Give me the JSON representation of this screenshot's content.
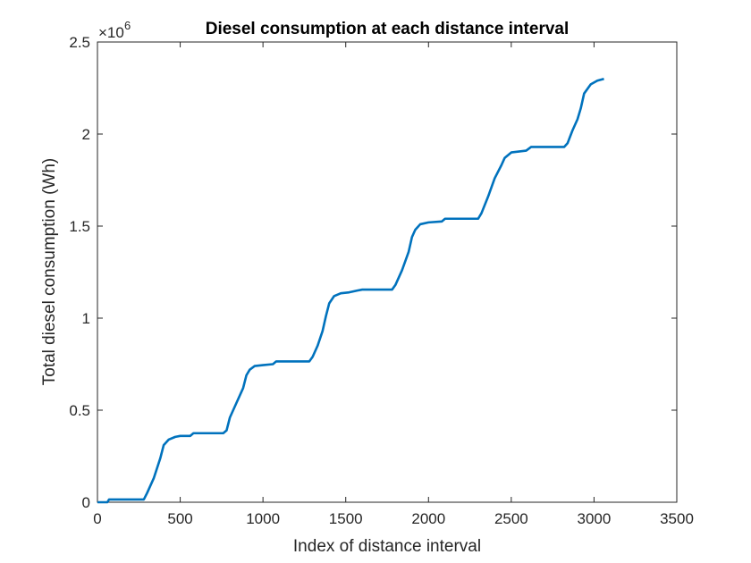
{
  "chart_data": {
    "type": "line",
    "title": "Diesel consumption at each distance interval",
    "xlabel": "Index of distance interval",
    "ylabel": "Total diesel consumption (Wh)",
    "xlim": [
      0,
      3500
    ],
    "ylim": [
      0,
      2500000
    ],
    "xticks": [
      0,
      500,
      1000,
      1500,
      2000,
      2500,
      3000,
      3500
    ],
    "yticks": [
      0,
      500000,
      1000000,
      1500000,
      2000000,
      2500000
    ],
    "xtick_labels": [
      "0",
      "500",
      "1000",
      "1500",
      "2000",
      "2500",
      "3000",
      "3500"
    ],
    "ytick_labels": [
      "0",
      "0.5",
      "1",
      "1.5",
      "2",
      "2.5"
    ],
    "y_exponent_label": "×10",
    "y_exponent_power": "6",
    "grid": false,
    "line_color": "#0072BD",
    "series": [
      {
        "x": [
          0,
          60,
          70,
          280,
          300,
          340,
          380,
          400,
          430,
          470,
          500,
          520,
          560,
          580,
          760,
          780,
          800,
          840,
          880,
          900,
          920,
          950,
          1000,
          1060,
          1080,
          1280,
          1300,
          1330,
          1360,
          1380,
          1400,
          1430,
          1470,
          1520,
          1570,
          1600,
          1780,
          1800,
          1840,
          1880,
          1900,
          1920,
          1950,
          2000,
          2080,
          2100,
          2300,
          2320,
          2360,
          2400,
          2440,
          2460,
          2500,
          2590,
          2620,
          2820,
          2840,
          2870,
          2900,
          2920,
          2940,
          2980,
          3020,
          3060
        ],
        "y": [
          0,
          0,
          15000,
          15000,
          50000,
          130000,
          240000,
          310000,
          340000,
          355000,
          360000,
          360000,
          360000,
          375000,
          375000,
          390000,
          460000,
          540000,
          620000,
          690000,
          720000,
          740000,
          745000,
          750000,
          765000,
          765000,
          790000,
          850000,
          930000,
          1010000,
          1080000,
          1120000,
          1135000,
          1140000,
          1150000,
          1155000,
          1155000,
          1180000,
          1260000,
          1360000,
          1440000,
          1480000,
          1510000,
          1520000,
          1525000,
          1540000,
          1540000,
          1570000,
          1660000,
          1760000,
          1830000,
          1870000,
          1900000,
          1910000,
          1930000,
          1930000,
          1950000,
          2020000,
          2080000,
          2140000,
          2220000,
          2270000,
          2290000,
          2300000
        ]
      }
    ]
  }
}
